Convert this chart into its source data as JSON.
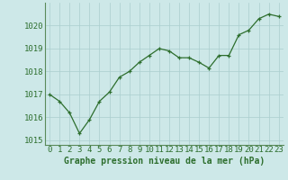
{
  "x": [
    0,
    1,
    2,
    3,
    4,
    5,
    6,
    7,
    8,
    9,
    10,
    11,
    12,
    13,
    14,
    15,
    16,
    17,
    18,
    19,
    20,
    21,
    22,
    23
  ],
  "y": [
    1017.0,
    1016.7,
    1016.2,
    1015.3,
    1015.9,
    1016.7,
    1017.1,
    1017.75,
    1018.0,
    1018.4,
    1018.7,
    1019.0,
    1018.9,
    1018.6,
    1018.6,
    1018.4,
    1018.15,
    1018.7,
    1018.7,
    1019.6,
    1019.8,
    1020.3,
    1020.5,
    1020.4
  ],
  "xlim": [
    -0.5,
    23.5
  ],
  "ylim": [
    1014.8,
    1021.0
  ],
  "yticks": [
    1015,
    1016,
    1017,
    1018,
    1019,
    1020
  ],
  "xticks": [
    0,
    1,
    2,
    3,
    4,
    5,
    6,
    7,
    8,
    9,
    10,
    11,
    12,
    13,
    14,
    15,
    16,
    17,
    18,
    19,
    20,
    21,
    22,
    23
  ],
  "xlabel": "Graphe pression niveau de la mer (hPa)",
  "line_color": "#2d6e2d",
  "marker": "+",
  "marker_color": "#2d6e2d",
  "bg_color": "#cde8e8",
  "grid_color": "#aacece",
  "tick_color": "#2d6e2d",
  "xlabel_color": "#2d6e2d",
  "xlabel_fontsize": 7.0,
  "tick_fontsize": 6.5,
  "spine_color": "#5a8a5a"
}
